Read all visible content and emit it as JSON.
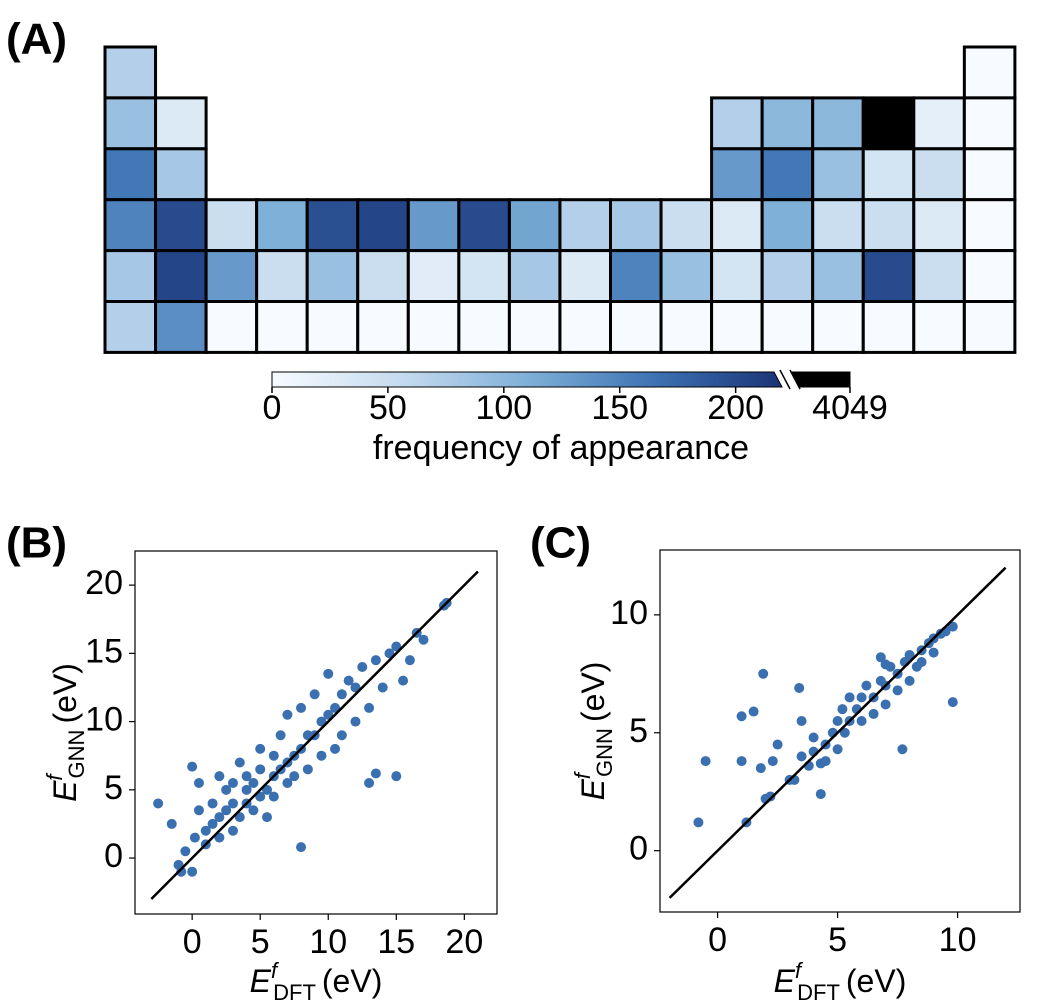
{
  "chart_data": [
    {
      "type": "heatmap",
      "panel": "(A)",
      "rows": [
        [
          70,
          null,
          null,
          null,
          null,
          null,
          null,
          null,
          null,
          null,
          null,
          null,
          null,
          null,
          null,
          null,
          null,
          0
        ],
        [
          90,
          30,
          null,
          null,
          null,
          null,
          null,
          null,
          null,
          null,
          null,
          null,
          70,
          100,
          100,
          4049,
          20,
          0
        ],
        [
          160,
          80,
          null,
          null,
          null,
          null,
          null,
          null,
          null,
          null,
          null,
          null,
          130,
          160,
          90,
          40,
          50,
          0
        ],
        [
          150,
          200,
          50,
          110,
          195,
          205,
          130,
          200,
          120,
          70,
          80,
          50,
          30,
          110,
          50,
          50,
          30,
          0
        ],
        [
          80,
          205,
          130,
          50,
          90,
          50,
          25,
          40,
          80,
          30,
          150,
          90,
          40,
          70,
          90,
          200,
          50,
          0
        ],
        [
          70,
          140,
          0,
          0,
          0,
          0,
          0,
          0,
          0,
          0,
          0,
          0,
          0,
          0,
          0,
          0,
          0,
          0
        ]
      ],
      "colorbar": {
        "label": "frequency of appearance",
        "lim": [
          0,
          220
        ],
        "ticks": [
          0,
          50,
          100,
          150,
          200
        ],
        "over_tick": 4049,
        "colormap": [
          "#f7fbff",
          "#c6dbef",
          "#7fb0d8",
          "#3d72b4",
          "#1a3476"
        ],
        "over_color": "#000000"
      }
    },
    {
      "type": "scatter",
      "panel": "(B)",
      "color": "#3a6fb0",
      "xlim": [
        -4.2,
        22.4
      ],
      "ylim": [
        -4.1,
        22.5
      ],
      "xticks": [
        0,
        5,
        10,
        15,
        20
      ],
      "yticks": [
        0,
        5,
        10,
        15,
        20
      ],
      "x_label": {
        "symbol": "E",
        "superscript": "f",
        "subscript": "DFT",
        "unit": "(eV)"
      },
      "y_label": {
        "symbol": "E",
        "superscript": "f",
        "subscript": "GNN",
        "unit": "(eV)"
      },
      "line": {
        "x": [
          -3,
          21
        ],
        "y": [
          -3,
          21
        ],
        "color": "#000000"
      },
      "x": [
        -2.5,
        -1.5,
        -1,
        -0.8,
        -0.5,
        0,
        0,
        0.2,
        0.5,
        0.5,
        1,
        1,
        1.5,
        1.5,
        2,
        2,
        2,
        2.5,
        2.5,
        3,
        3,
        3,
        3.5,
        3.5,
        4,
        4,
        4,
        4.5,
        4.5,
        5,
        5,
        5,
        5.5,
        5.5,
        6,
        6,
        6,
        6.5,
        6.5,
        7,
        7,
        7,
        7.5,
        7.5,
        8,
        8,
        8,
        8.5,
        8.5,
        9,
        9,
        9.5,
        9.5,
        10,
        10,
        10.5,
        10.5,
        11,
        11,
        11.5,
        12,
        12,
        12.5,
        13,
        13.5,
        13.5,
        14,
        14.5,
        15,
        15,
        15.5,
        16,
        16.5,
        17,
        18.5,
        18.7,
        13
      ],
      "y": [
        4,
        2.5,
        -0.5,
        -1,
        0.5,
        6.7,
        -1,
        1.5,
        3.5,
        5.5,
        1,
        2,
        2.5,
        4,
        1.5,
        3,
        6,
        3.5,
        5,
        2,
        4,
        5.5,
        3,
        7,
        4,
        5,
        6,
        3.5,
        5.5,
        4.5,
        6.5,
        8,
        5,
        3,
        6,
        7.5,
        4.5,
        6.5,
        9,
        7,
        5.5,
        10.5,
        7.5,
        6,
        8,
        0.8,
        11,
        9,
        6.5,
        9,
        12,
        10,
        7.5,
        10.5,
        13.5,
        11,
        8,
        12,
        9,
        13,
        12.5,
        10,
        14,
        11,
        6.2,
        14.5,
        12.5,
        15,
        6,
        15.5,
        13,
        14.5,
        16.5,
        16,
        18.5,
        18.7,
        5.5
      ]
    },
    {
      "type": "scatter",
      "panel": "(C)",
      "color": "#3a6fb0",
      "xlim": [
        -2.4,
        12.6
      ],
      "ylim": [
        -2.6,
        12.75
      ],
      "xticks": [
        0,
        5,
        10
      ],
      "yticks": [
        0,
        5,
        10
      ],
      "x_label": {
        "symbol": "E",
        "superscript": "f",
        "subscript": "DFT",
        "unit": "(eV)"
      },
      "y_label": {
        "symbol": "E",
        "superscript": "f",
        "subscript": "GNN",
        "unit": "(eV)"
      },
      "line": {
        "x": [
          -2,
          12
        ],
        "y": [
          -2,
          12
        ],
        "color": "#000000"
      },
      "x": [
        -0.8,
        -0.5,
        1,
        1,
        1.2,
        1.5,
        1.8,
        1.9,
        2,
        2.2,
        2.3,
        2.5,
        3,
        3.2,
        3.4,
        3.5,
        3.5,
        3.8,
        4,
        4,
        4.3,
        4.3,
        4.5,
        4.5,
        4.8,
        5,
        5,
        5.2,
        5.3,
        5.5,
        5.5,
        5.8,
        6,
        6,
        6.2,
        6.5,
        6.5,
        6.8,
        7,
        7,
        7,
        7.2,
        7.5,
        7.5,
        7.7,
        7.8,
        8,
        8,
        8.3,
        8.5,
        8.5,
        8.8,
        9,
        9,
        9.3,
        9.5,
        9.8,
        9.8,
        6.8
      ],
      "y": [
        1.2,
        3.8,
        3.8,
        5.7,
        1.2,
        5.9,
        3.5,
        7.5,
        2.2,
        2.3,
        3.8,
        4.5,
        3,
        3,
        6.9,
        4,
        5.5,
        3.6,
        4.2,
        4.8,
        3.7,
        2.4,
        4.5,
        3.8,
        5,
        4.3,
        5.5,
        6,
        5,
        5.5,
        6.5,
        6,
        6.5,
        5.5,
        7,
        6.5,
        5.8,
        7.2,
        7,
        6.2,
        7.9,
        7.8,
        7.5,
        6.8,
        4.3,
        8,
        8.3,
        7.2,
        7.8,
        8.5,
        8,
        8.8,
        9,
        8.4,
        9.2,
        9.3,
        9.5,
        6.3,
        8.2
      ]
    }
  ]
}
